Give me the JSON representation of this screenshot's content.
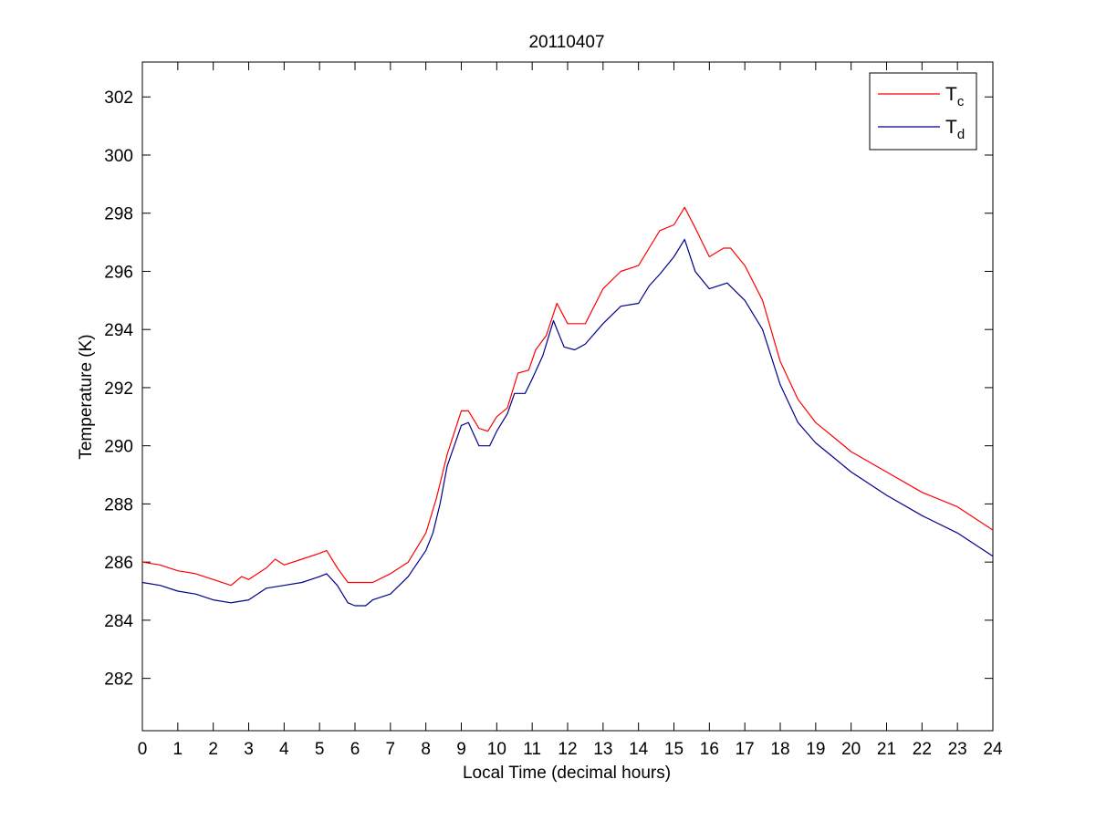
{
  "chart_data": {
    "type": "line",
    "title": "20110407",
    "xlabel": "Local Time (decimal hours)",
    "ylabel": "Temperature (K)",
    "xlim": [
      0,
      24
    ],
    "ylim": [
      280.2,
      303.2
    ],
    "xticks": [
      0,
      1,
      2,
      3,
      4,
      5,
      6,
      7,
      8,
      9,
      10,
      11,
      12,
      13,
      14,
      15,
      16,
      17,
      18,
      19,
      20,
      21,
      22,
      23,
      24
    ],
    "yticks": [
      282,
      284,
      286,
      288,
      290,
      292,
      294,
      296,
      298,
      300,
      302
    ],
    "grid": false,
    "legend_position": "top-right",
    "series": [
      {
        "name": "T",
        "subscript": "c",
        "color": "#ff0000",
        "x": [
          0,
          0.5,
          1,
          1.5,
          2,
          2.5,
          2.8,
          3,
          3.5,
          3.75,
          4,
          4.5,
          5,
          5.2,
          5.5,
          5.8,
          6,
          6.5,
          7,
          7.5,
          8,
          8.3,
          8.6,
          9,
          9.2,
          9.5,
          9.75,
          10,
          10.3,
          10.6,
          10.9,
          11.1,
          11.4,
          11.7,
          12,
          12.5,
          13,
          13.5,
          14,
          14.3,
          14.6,
          15,
          15.3,
          15.6,
          16,
          16.4,
          16.6,
          17,
          17.5,
          18,
          18.5,
          19,
          19.5,
          20,
          21,
          22,
          23,
          24
        ],
        "y": [
          286.0,
          285.9,
          285.7,
          285.6,
          285.4,
          285.2,
          285.5,
          285.4,
          285.8,
          286.1,
          285.9,
          286.1,
          286.3,
          286.4,
          285.8,
          285.3,
          285.3,
          285.3,
          285.6,
          286.0,
          287.0,
          288.2,
          289.7,
          291.2,
          291.2,
          290.6,
          290.5,
          291.0,
          291.3,
          292.5,
          292.6,
          293.3,
          293.8,
          294.9,
          294.2,
          294.2,
          295.4,
          296.0,
          296.2,
          296.8,
          297.4,
          297.6,
          298.2,
          297.5,
          296.5,
          296.8,
          296.8,
          296.2,
          295.0,
          292.9,
          291.6,
          290.8,
          290.3,
          289.8,
          289.1,
          288.4,
          287.9,
          287.1
        ]
      },
      {
        "name": "T",
        "subscript": "d",
        "color": "#00008b",
        "x": [
          0,
          0.5,
          1,
          1.5,
          2,
          2.5,
          3,
          3.5,
          4,
          4.5,
          5,
          5.2,
          5.5,
          5.8,
          6,
          6.3,
          6.5,
          7,
          7.5,
          8,
          8.2,
          8.4,
          8.6,
          9,
          9.2,
          9.5,
          9.8,
          10,
          10.3,
          10.5,
          10.8,
          11.0,
          11.3,
          11.6,
          11.9,
          12.2,
          12.5,
          13,
          13.5,
          14,
          14.3,
          14.6,
          15,
          15.3,
          15.6,
          16,
          16.5,
          17,
          17.5,
          18,
          18.5,
          19,
          19.5,
          20,
          21,
          22,
          23,
          24
        ],
        "y": [
          285.3,
          285.2,
          285.0,
          284.9,
          284.7,
          284.6,
          284.7,
          285.1,
          285.2,
          285.3,
          285.5,
          285.6,
          285.2,
          284.6,
          284.5,
          284.5,
          284.7,
          284.9,
          285.5,
          286.4,
          287.0,
          288.0,
          289.3,
          290.7,
          290.8,
          290.0,
          290.0,
          290.5,
          291.1,
          291.8,
          291.8,
          292.3,
          293.1,
          294.3,
          293.4,
          293.3,
          293.5,
          294.2,
          294.8,
          294.9,
          295.5,
          295.9,
          296.5,
          297.1,
          296.0,
          295.4,
          295.6,
          295.0,
          294.0,
          292.1,
          290.8,
          290.1,
          289.6,
          289.1,
          288.3,
          287.6,
          287.0,
          286.2
        ]
      }
    ]
  }
}
